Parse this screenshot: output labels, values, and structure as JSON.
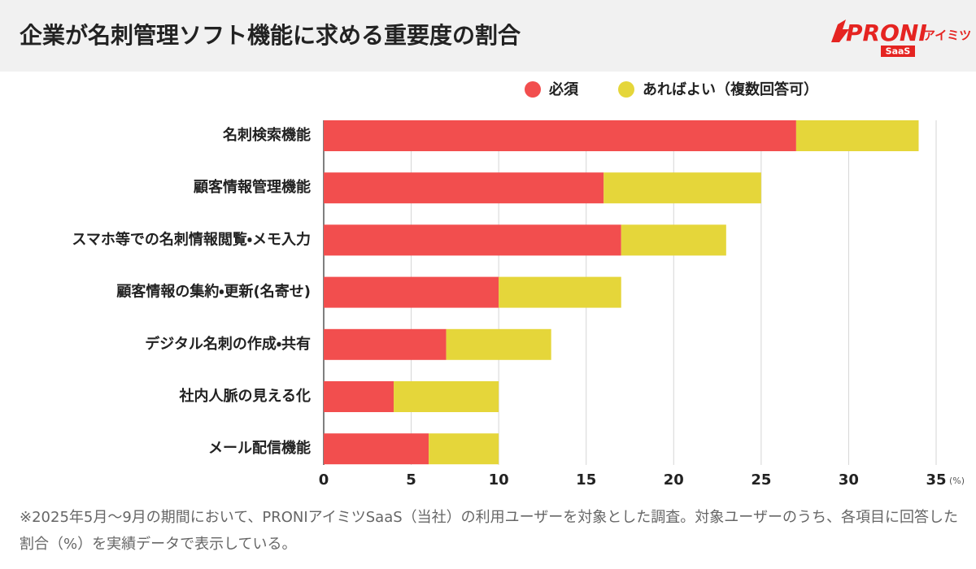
{
  "chart_data": {
    "type": "stacked-hbar",
    "title": "企業が名刺管理ソフト機能に求める重要度の割合",
    "categories": [
      "名刺検索機能",
      "顧客情報管理機能",
      "スマホ等での名刺情報閲覧・メモ入力",
      "顧客情報の集約・更新(名寄せ)",
      "デジタル名刺の作成・共有",
      "社内人脈の見える化",
      "メール配信機能"
    ],
    "series": [
      {
        "name": "必須",
        "color": "#f24e4e",
        "values": [
          27,
          16,
          17,
          10,
          7,
          4,
          6
        ]
      },
      {
        "name": "あればよい（複数回答可）",
        "color": "#e5d63a",
        "values": [
          7,
          9,
          6,
          7,
          6,
          6,
          4
        ]
      }
    ],
    "xlim": [
      0,
      35
    ],
    "xticks": [
      0,
      5,
      10,
      15,
      20,
      25,
      30,
      35
    ],
    "xlabel": "(%)",
    "grid": true,
    "legend": "top",
    "footnote": "※2025年5月〜9月の期間において、PRONIアイミツSaaS（当社）の利用ユーザーを対象とした調査。対象ユーザーのうち、各項目に回答した割合（%）を実績データで表示している。"
  },
  "logo": {
    "brand": "PRONI",
    "sub": "アイミツ",
    "badge": "SaaS"
  }
}
